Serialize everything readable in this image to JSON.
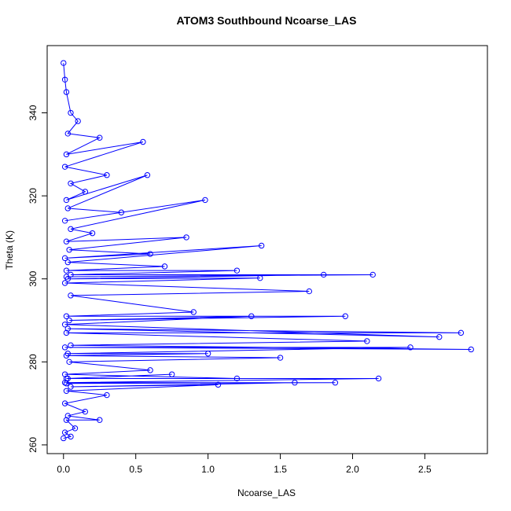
{
  "chart_data": {
    "type": "line",
    "title": "ATOM3 Southbound Ncoarse_LAS",
    "x_label": "Ncoarse_LAS",
    "y_label": "Theta (K)",
    "series": [
      {
        "color": "#0000ff",
        "x": [
          0,
          0.01,
          0.02,
          0.05,
          0.1,
          0.03,
          0.25,
          0.02,
          0.55,
          0.01,
          0.3,
          0.05,
          0.15,
          0.02,
          0.58,
          0.03,
          0.4,
          0.01,
          0.98,
          0.05,
          0.2,
          0.02,
          0.85,
          0.04,
          0.6,
          0.01,
          1.37,
          0.03,
          0.7,
          0.02,
          1.2,
          0.05,
          2.14,
          0.02,
          1.8,
          0.03,
          1.36,
          0.01,
          1.7,
          0.05,
          0.9,
          0.02,
          1.95,
          0.04,
          1.3,
          0.01,
          2.6,
          0.03,
          2.75,
          0.02,
          2.1,
          0.05,
          2.82,
          0.01,
          2.4,
          0.03,
          1.0,
          0.02,
          1.5,
          0.04,
          0.6,
          0.01,
          1.2,
          0.02,
          0.75,
          0.03,
          2.18,
          0.01,
          1.88,
          0.02,
          1.6,
          0.05,
          1.07,
          0.02,
          0.3,
          0.01,
          0.15,
          0.03,
          0.25,
          0.02,
          0.08,
          0.01,
          0.05,
          0
        ],
        "values": [
          352,
          348,
          345,
          340,
          338,
          335,
          334,
          330,
          333,
          327,
          325,
          323,
          321,
          319,
          325,
          317,
          316,
          314,
          319,
          312,
          311,
          309,
          310,
          307,
          306,
          305,
          308,
          304,
          303,
          302,
          302,
          301,
          301,
          300.5,
          301,
          300,
          300.2,
          299,
          297,
          296,
          292,
          291,
          291,
          290,
          291,
          289,
          286,
          288,
          287,
          287,
          285,
          284,
          283,
          283.5,
          283.5,
          282,
          282,
          281.5,
          281,
          280,
          278,
          277,
          276,
          276,
          277,
          276,
          276,
          275,
          275,
          274.8,
          275,
          274,
          274.5,
          273,
          272,
          270,
          268,
          267,
          266,
          266,
          264,
          263,
          262,
          261.6
        ]
      }
    ],
    "xlim": [
      -0.113,
      2.933
    ],
    "ylim": [
      257.9,
      356.2
    ],
    "xticks": [
      {
        "value": 0,
        "label": "0.0"
      },
      0.5,
      {
        "value": 1,
        "label": "1.0"
      },
      1.5,
      {
        "value": 2,
        "label": "2.0"
      },
      2.5
    ],
    "yticks": [
      260,
      280,
      300,
      320,
      340
    ]
  }
}
